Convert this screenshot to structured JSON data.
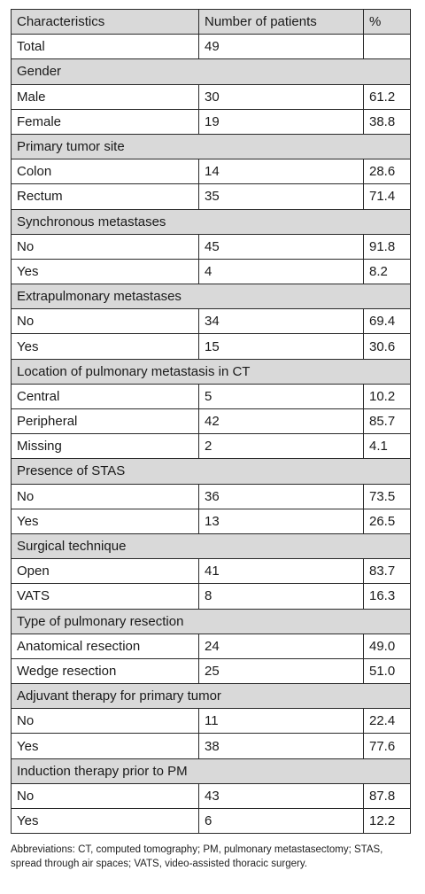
{
  "table": {
    "headers": [
      "Characteristics",
      "Number of patients",
      "%"
    ],
    "total": {
      "label": "Total",
      "count": "49",
      "pct": ""
    },
    "sections": [
      {
        "title": "Gender",
        "rows": [
          {
            "label": "Male",
            "count": "30",
            "pct": "61.2"
          },
          {
            "label": "Female",
            "count": "19",
            "pct": "38.8"
          }
        ]
      },
      {
        "title": "Primary tumor site",
        "rows": [
          {
            "label": "Colon",
            "count": "14",
            "pct": "28.6"
          },
          {
            "label": "Rectum",
            "count": "35",
            "pct": "71.4"
          }
        ]
      },
      {
        "title": "Synchronous metastases",
        "rows": [
          {
            "label": "No",
            "count": "45",
            "pct": "91.8"
          },
          {
            "label": "Yes",
            "count": "4",
            "pct": "8.2"
          }
        ]
      },
      {
        "title": "Extrapulmonary metastases",
        "rows": [
          {
            "label": "No",
            "count": "34",
            "pct": "69.4"
          },
          {
            "label": "Yes",
            "count": "15",
            "pct": "30.6"
          }
        ]
      },
      {
        "title": "Location of pulmonary metastasis in CT",
        "rows": [
          {
            "label": "Central",
            "count": "5",
            "pct": "10.2"
          },
          {
            "label": "Peripheral",
            "count": "42",
            "pct": "85.7"
          },
          {
            "label": "Missing",
            "count": "2",
            "pct": "4.1"
          }
        ]
      },
      {
        "title": "Presence of STAS",
        "rows": [
          {
            "label": "No",
            "count": "36",
            "pct": "73.5"
          },
          {
            "label": "Yes",
            "count": "13",
            "pct": "26.5"
          }
        ]
      },
      {
        "title": "Surgical technique",
        "rows": [
          {
            "label": "Open",
            "count": "41",
            "pct": "83.7"
          },
          {
            "label": "VATS",
            "count": "8",
            "pct": "16.3"
          }
        ]
      },
      {
        "title": "Type of pulmonary resection",
        "rows": [
          {
            "label": "Anatomical resection",
            "count": "24",
            "pct": "49.0"
          },
          {
            "label": "Wedge resection",
            "count": "25",
            "pct": "51.0"
          }
        ]
      },
      {
        "title": "Adjuvant therapy for primary tumor",
        "rows": [
          {
            "label": "No",
            "count": "11",
            "pct": "22.4"
          },
          {
            "label": "Yes",
            "count": "38",
            "pct": "77.6"
          }
        ]
      },
      {
        "title": "Induction therapy prior to PM",
        "rows": [
          {
            "label": "No",
            "count": "43",
            "pct": "87.8"
          },
          {
            "label": "Yes",
            "count": "6",
            "pct": "12.2"
          }
        ]
      }
    ]
  },
  "footnote": "Abbreviations: CT, computed tomography; PM, pulmonary metastasectomy; STAS, spread through air spaces; VATS, video-assisted thoracic surgery."
}
